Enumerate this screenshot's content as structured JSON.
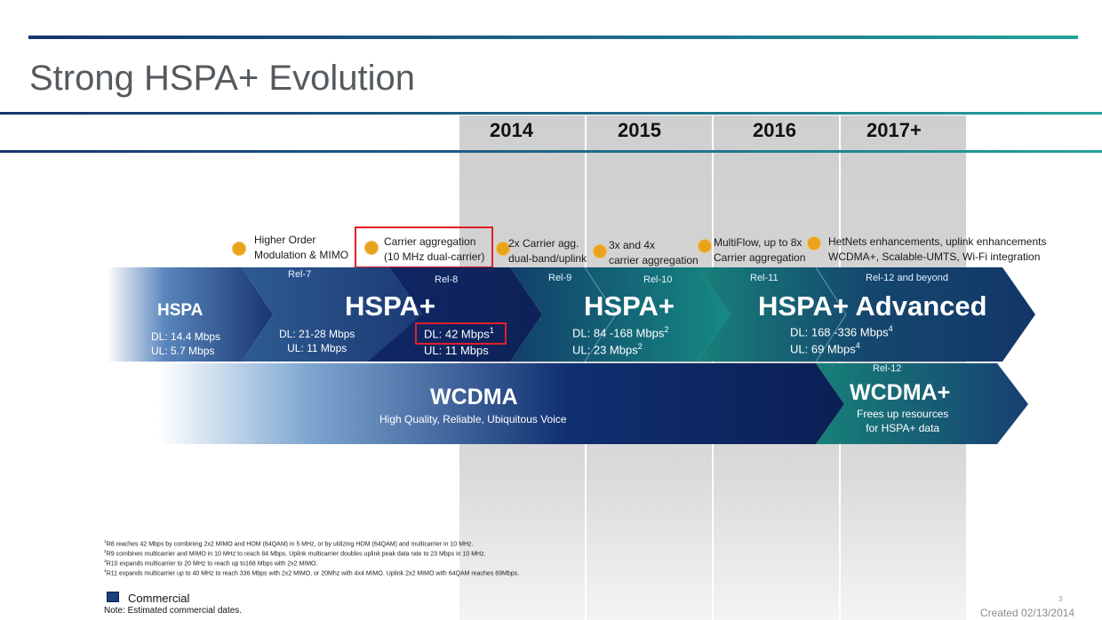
{
  "slide": {
    "title": "Strong HSPA+ Evolution",
    "page_number": "3",
    "created": "Created 02/13/2014"
  },
  "years": [
    "2014",
    "2015",
    "2016",
    "2017+"
  ],
  "features": {
    "f1": [
      "Higher Order",
      "Modulation & MIMO"
    ],
    "f2": [
      "Carrier aggregation",
      "(10 MHz dual-carrier)"
    ],
    "f3": [
      "2x Carrier agg.",
      "dual-band/uplink"
    ],
    "f4": [
      "3x and 4x",
      "carrier aggregation"
    ],
    "f5": [
      "MultiFlow, up to 8x",
      "Carrier aggregation"
    ],
    "f6": [
      "HetNets enhancements, uplink enhancements",
      "WCDMA+, Scalable-UMTS, Wi-Fi integration"
    ]
  },
  "releases": {
    "rel7": "Rel-7",
    "rel8": "Rel-8",
    "rel9": "Rel-9",
    "rel10": "Rel-10",
    "rel11": "Rel-11",
    "rel12b": "Rel-12 and beyond",
    "rel12": "Rel-12"
  },
  "bands": {
    "hspa": {
      "name": "HSPA",
      "dl": "DL: 14.4 Mbps",
      "ul": "UL: 5.7 Mbps"
    },
    "hspa_plus_r7": {
      "dl": "DL:  21-28 Mbps",
      "ul": "UL: 11 Mbps"
    },
    "hspa_plus_r8": {
      "name": "HSPA+",
      "dl": "DL: 42 Mbps",
      "dl_sup": "1",
      "ul": "UL: 11 Mbps"
    },
    "hspa_plus_r9": {
      "name": "HSPA+",
      "dl": "DL: 84 -168  Mbps",
      "dl_sup": "2",
      "ul": "UL: 23 Mbps",
      "ul_sup": "2"
    },
    "hspa_adv": {
      "name": "HSPA+ Advanced",
      "dl": "DL: 168 -336 Mbps",
      "dl_sup": "4",
      "ul": "UL: 69 Mbps",
      "ul_sup": "4"
    },
    "wcdma": {
      "name": "WCDMA",
      "desc": "High Quality, Reliable, Ubiquitous Voice"
    },
    "wcdma_plus": {
      "name": "WCDMA+",
      "desc1": "Frees up resources",
      "desc2": "for HSPA+ data"
    }
  },
  "footnotes": [
    {
      "n": "1",
      "text": "R8 reaches 42 Mbps by combining 2x2 MIMO and HOM (64QAM) in 5 MHz, or by utilizing HOM (64QAM) and multicarrier in 10 MHz."
    },
    {
      "n": "2",
      "text": "R9 combines multicarrier and MIMO in 10 MHz to reach 84 Mbps. Uplink multicarrier doubles uplink peak data rate to 23 Mbps in 10 MHz."
    },
    {
      "n": "3",
      "text": "R10 expands multicarrier to 20 MHz to reach up to168 Mbps with 2x2 MIMO."
    },
    {
      "n": "4",
      "text": "R11 expands multicarrier up to 40 MHz to reach 336 Mbps with 2x2 MIMO, or 20Mhz with 4x4 MIMO.  Uplink  2x2 MIMO  with 64QAM reaches 69Mbps."
    }
  ],
  "legend": {
    "commercial": "Commercial",
    "note": "Note: Estimated commercial dates.",
    "color": "#1d3f7a"
  },
  "colors": {
    "navy": "#0d2257",
    "teal": "#13877f",
    "accent_dot": "#e9a21b",
    "highlight": "#e0202b"
  }
}
